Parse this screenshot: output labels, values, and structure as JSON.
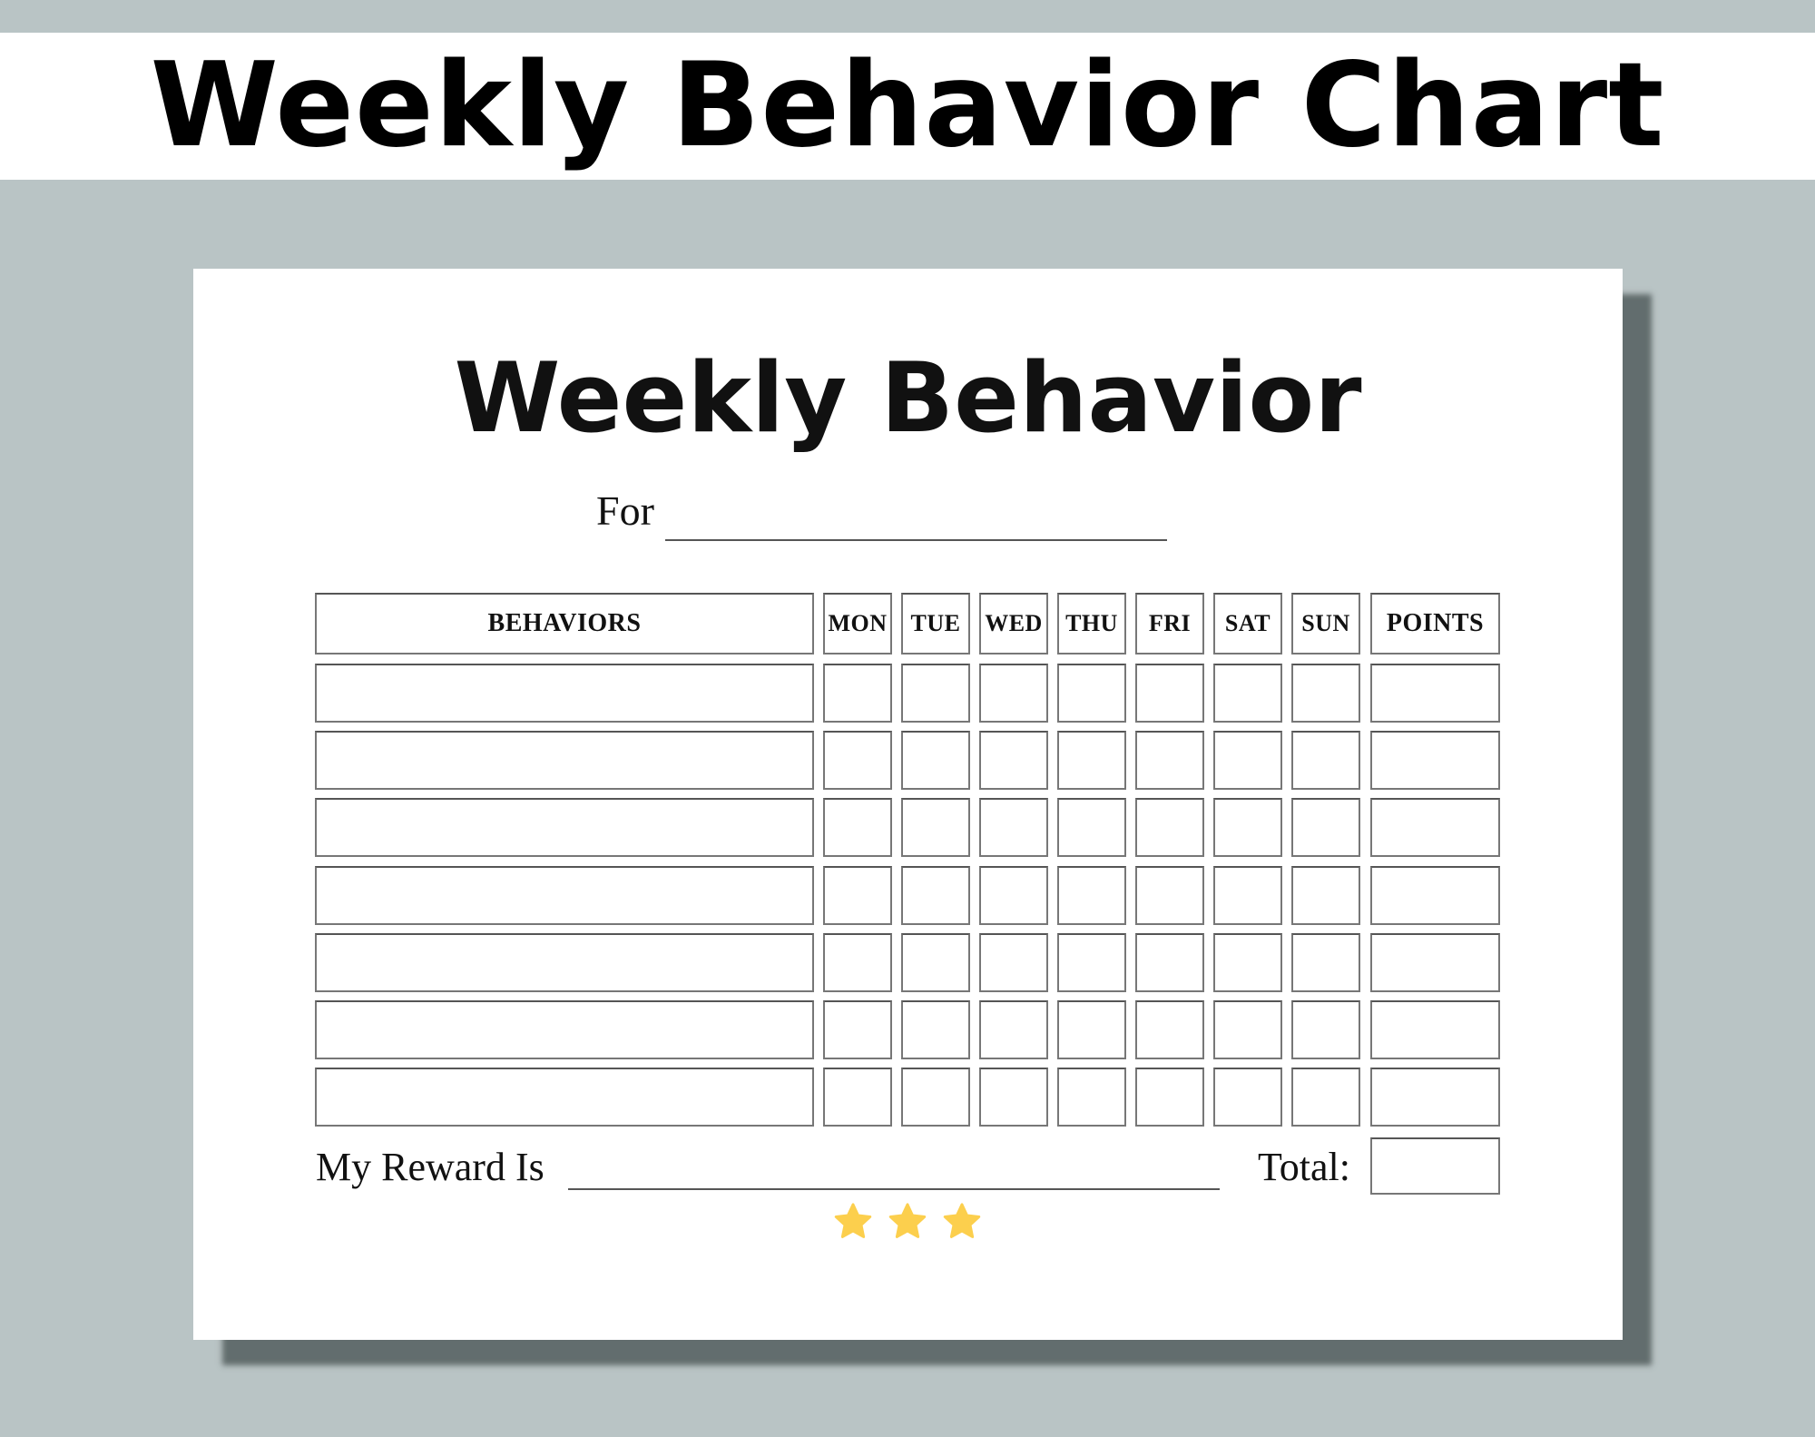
{
  "banner": {
    "title": "Weekly Behavior Chart"
  },
  "sheet": {
    "title": "Weekly Behavior",
    "for_label": "For",
    "columns": {
      "behaviors": "BEHAVIORS",
      "days": [
        "MON",
        "TUE",
        "WED",
        "THU",
        "FRI",
        "SAT",
        "SUN"
      ],
      "points": "POINTS"
    },
    "row_count": 7,
    "reward_label": "My Reward Is",
    "total_label": "Total:",
    "stars": 3
  },
  "colors": {
    "background": "#b9c4c5",
    "star": "#fccf4d"
  }
}
